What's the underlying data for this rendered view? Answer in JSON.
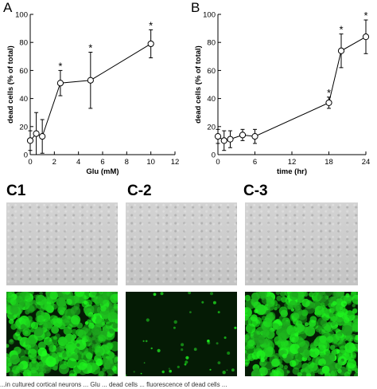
{
  "chart_data": [
    {
      "type": "line",
      "panel": "A",
      "xlabel": "Glu (mM)",
      "ylabel": "dead cells (% of total)",
      "xlim": [
        0,
        12
      ],
      "ylim": [
        0,
        100
      ],
      "xticks": [
        0,
        2,
        4,
        6,
        8,
        10,
        12
      ],
      "yticks": [
        0,
        20,
        40,
        60,
        80,
        100
      ],
      "series": [
        {
          "x": [
            0,
            0.5,
            1,
            2.5,
            5,
            10
          ],
          "y": [
            10,
            15,
            13,
            51,
            53,
            79
          ],
          "error": [
            7,
            15,
            12,
            9,
            20,
            10
          ],
          "significant": [
            false,
            false,
            false,
            true,
            true,
            true
          ]
        }
      ],
      "marker": "open-circle",
      "significance_symbol": "*"
    },
    {
      "type": "line",
      "panel": "B",
      "xlabel": "time (hr)",
      "ylabel": "dead cells (% of total)",
      "xlim": [
        0,
        24
      ],
      "ylim": [
        0,
        100
      ],
      "xticks": [
        0,
        6,
        12,
        18,
        24
      ],
      "yticks": [
        0,
        20,
        40,
        60,
        80,
        100
      ],
      "series": [
        {
          "x": [
            0,
            1,
            2,
            4,
            6,
            18,
            20,
            24
          ],
          "y": [
            13,
            10,
            11,
            14,
            13,
            37,
            74,
            84
          ],
          "error": [
            5,
            7,
            6,
            4,
            5,
            4,
            12,
            12
          ],
          "significant": [
            false,
            false,
            false,
            false,
            false,
            true,
            true,
            true
          ]
        }
      ],
      "marker": "open-circle",
      "significance_symbol": "*"
    }
  ],
  "panels": {
    "c1": "C1",
    "c2": "C-2",
    "c3": "C-3"
  },
  "colors": {
    "brightfield": "#c9c9c9",
    "fluorescence": "#2fdc2f"
  },
  "fluor_density": [
    0.85,
    0.05,
    0.95
  ],
  "caption": "...in cultured cortical neurons ... Glu ... dead cells ... fluorescence of dead cells ... "
}
